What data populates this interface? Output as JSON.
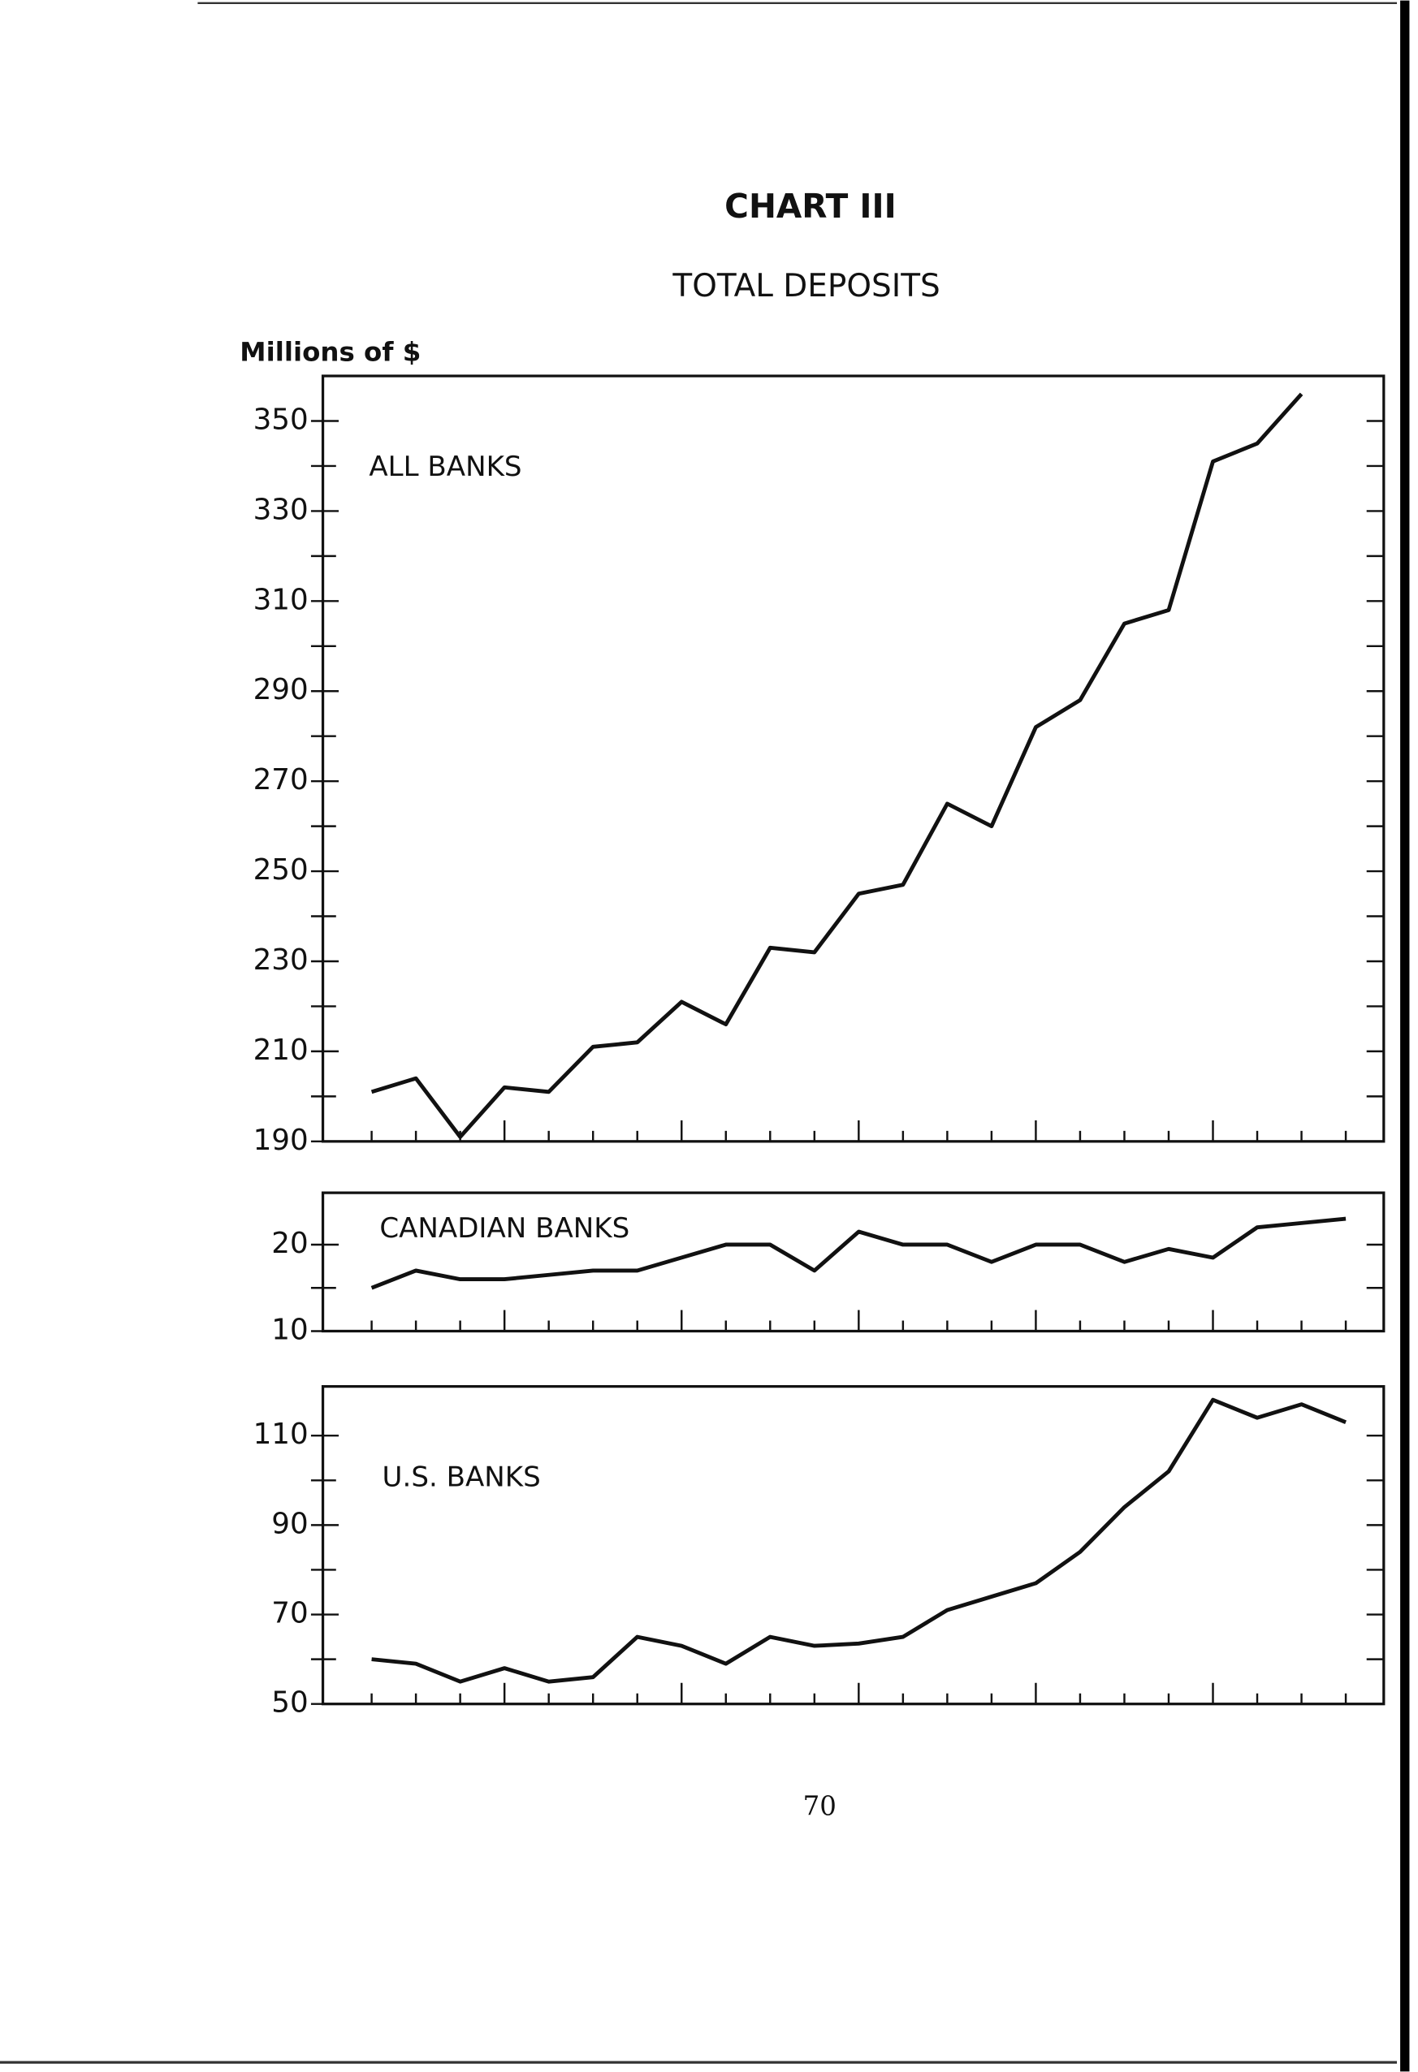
{
  "header": {
    "chart_number": "CHART III",
    "title": "TOTAL DEPOSITS",
    "y_axis_label": "Millions of $"
  },
  "page_number": "70",
  "chart_data": [
    {
      "type": "line",
      "label": "ALL BANKS",
      "color": "#111111",
      "categories": [
        null,
        null,
        null,
        null,
        null,
        null,
        null,
        null,
        null,
        null,
        null,
        null,
        null,
        null,
        null,
        null,
        null,
        null,
        null,
        null,
        null,
        null,
        null
      ],
      "values": [
        201,
        204,
        191,
        202,
        201,
        211,
        212,
        221,
        216,
        233,
        232,
        245,
        247,
        265,
        260,
        282,
        288,
        305,
        308,
        341,
        345,
        356,
        null
      ],
      "ylim": [
        190,
        360
      ],
      "yticks": [
        190,
        210,
        230,
        250,
        270,
        290,
        310,
        330,
        350
      ],
      "minor_yticks": [
        200,
        220,
        240,
        260,
        280,
        300,
        320,
        340
      ]
    },
    {
      "type": "line",
      "label": "CANADIAN BANKS",
      "color": "#111111",
      "categories": [
        null,
        null,
        null,
        null,
        null,
        null,
        null,
        null,
        null,
        null,
        null,
        null,
        null,
        null,
        null,
        null,
        null,
        null,
        null,
        null,
        null,
        null,
        null
      ],
      "values": [
        15,
        17,
        16,
        16,
        16.5,
        17,
        17,
        18.5,
        20,
        20,
        17,
        21.5,
        20,
        20,
        18,
        20,
        20,
        18,
        19.5,
        18.5,
        22,
        22.5,
        23
      ],
      "ylim": [
        10,
        26
      ],
      "yticks": [
        10,
        20
      ],
      "minor_yticks": [
        15
      ]
    },
    {
      "type": "line",
      "label": "U.S. BANKS",
      "color": "#111111",
      "categories": [
        null,
        null,
        null,
        null,
        null,
        null,
        null,
        null,
        null,
        null,
        null,
        null,
        null,
        null,
        null,
        null,
        null,
        null,
        null,
        null,
        null,
        null,
        null
      ],
      "values": [
        60,
        59,
        55,
        58,
        55,
        56,
        65,
        63,
        59,
        65,
        63,
        63.5,
        65,
        71,
        74,
        77,
        84,
        94,
        102,
        118,
        114,
        117,
        113
      ],
      "ylim": [
        50,
        121
      ],
      "yticks": [
        50,
        70,
        90,
        110
      ],
      "minor_yticks": [
        60,
        80,
        100
      ]
    }
  ]
}
